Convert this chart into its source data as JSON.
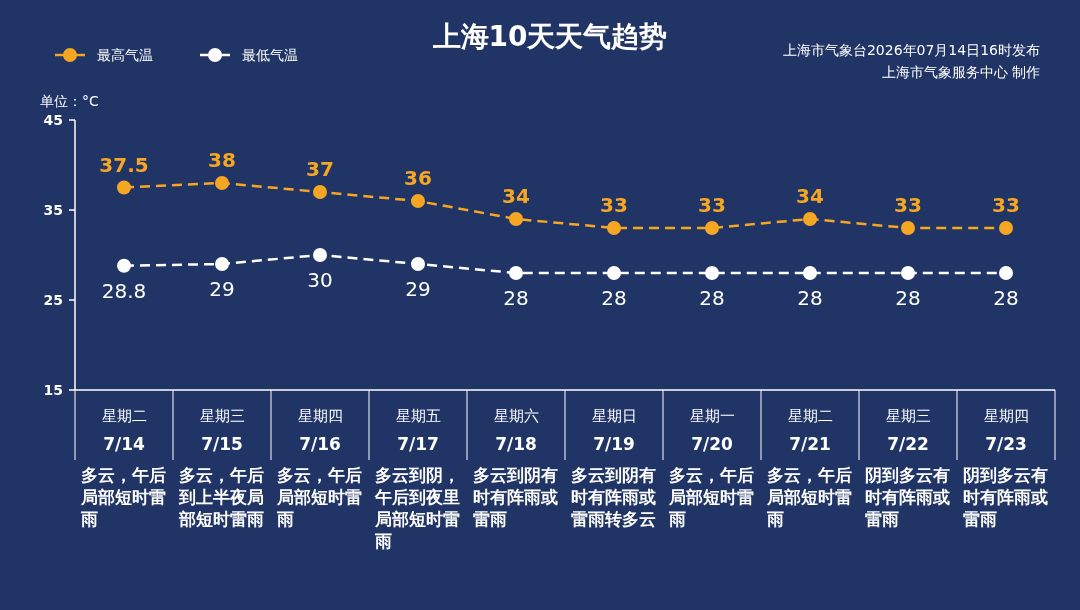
{
  "chart_data": {
    "type": "line",
    "title": "上海10天天气趋势",
    "ylabel": "单位：°C",
    "annotations": [
      "上海市气象台2026年07月14日16时发布",
      "上海市气象服务中心 制作"
    ],
    "categories": [
      "星期二\n7/14\n多云，午后局部短时雷雨",
      "星期三\n7/15\n多云，午后到上半夜局部短时雷雨",
      "星期四\n7/16\n多云，午后局部短时雷雨",
      "星期五\n7/17\n多云到阴，午后到夜里局部短时雷雨",
      "星期六\n7/18\n多云到阴有时有阵雨或雷雨",
      "星期日\n7/19\n多云到阴有时有阵雨或雷雨转多云",
      "星期一\n7/20\n多云，午后局部短时雷雨",
      "星期二\n7/21\n多云，午后局部短时雷雨",
      "星期三\n7/22\n阴到多云有时有阵雨或雷雨",
      "星期四\n7/23\n阴到多云有时有阵雨或雷雨"
    ],
    "series": [
      {
        "name": "最高气温",
        "color": "#f5a623",
        "values": [
          37.5,
          38,
          37,
          36,
          34,
          33,
          33,
          34,
          33,
          33
        ]
      },
      {
        "name": "最低气温",
        "color": "#ffffff",
        "values": [
          28.8,
          29,
          30,
          29,
          28,
          28,
          28,
          28,
          28,
          28
        ]
      }
    ],
    "ylim": [
      15,
      45
    ],
    "yticks": [
      15,
      25,
      35,
      45
    ],
    "grid": false,
    "legend": "top left",
    "marker": "circle",
    "line_style": "dashed",
    "data_labels": true
  }
}
